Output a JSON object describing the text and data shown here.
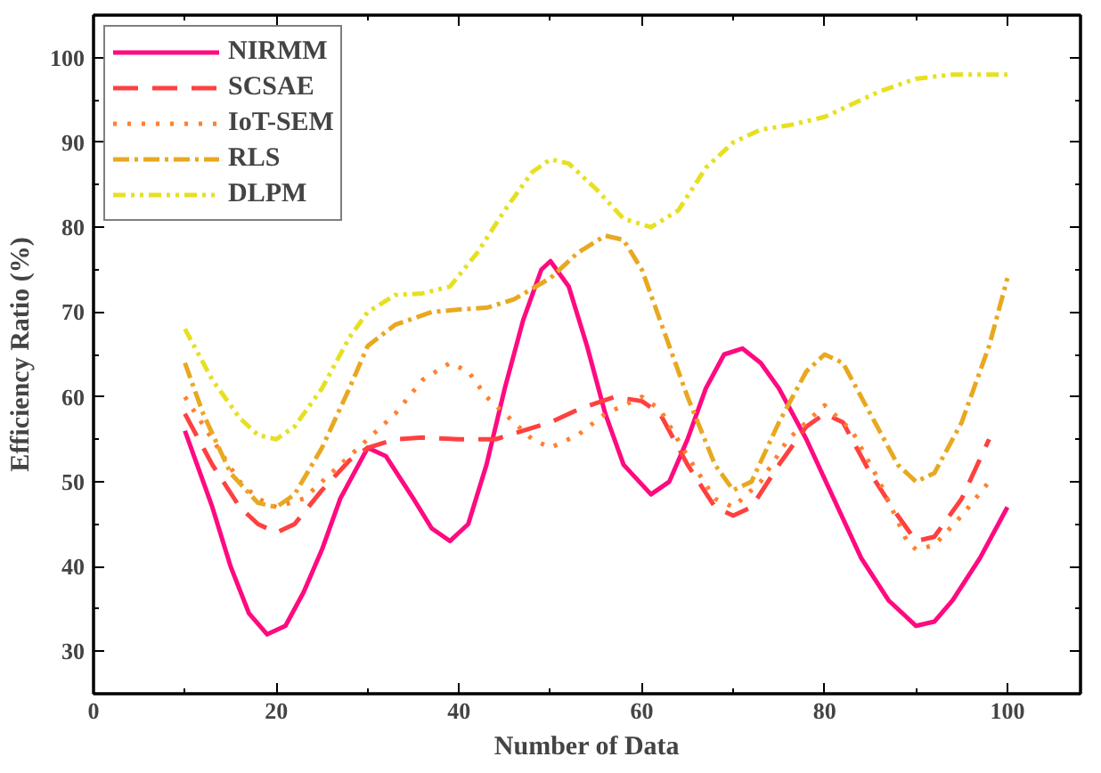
{
  "chart_data": {
    "type": "line",
    "xlabel": "Number of Data",
    "ylabel": "Efficiency Ratio (%)",
    "xlim": [
      0,
      108
    ],
    "ylim": [
      25,
      105
    ],
    "xticks": [
      0,
      20,
      40,
      60,
      80,
      100
    ],
    "yticks": [
      30,
      40,
      50,
      60,
      70,
      80,
      90,
      100
    ],
    "grid": false,
    "legend": "top left",
    "marker": "none",
    "series": [
      {
        "name": "NIRMM",
        "color": "#ff0a80",
        "line_style": "solid",
        "x": [
          10,
          13,
          15,
          17,
          19,
          21,
          23,
          25,
          27,
          30,
          32,
          35,
          37,
          39,
          41,
          43,
          45,
          47,
          49,
          50,
          52,
          54,
          56,
          58,
          61,
          63,
          65,
          67,
          69,
          71,
          73,
          75,
          78,
          81,
          84,
          87,
          90,
          92,
          94,
          97,
          100
        ],
        "values": [
          56,
          47,
          40,
          34.5,
          32,
          33,
          37,
          42,
          48,
          54,
          53,
          48,
          44.5,
          43,
          45,
          52,
          61,
          69,
          75,
          76,
          73,
          66,
          58,
          52,
          48.5,
          50,
          55,
          61,
          65,
          65.7,
          64,
          61,
          55,
          48,
          41,
          36,
          33,
          33.5,
          36,
          41,
          47
        ]
      },
      {
        "name": "SCSAE",
        "color": "#ff4040",
        "line_style": "dashed",
        "x": [
          10,
          13,
          16,
          18,
          20,
          22,
          25,
          28,
          30,
          33,
          36,
          40,
          44,
          47,
          50,
          53,
          57,
          60,
          62,
          65,
          68,
          70,
          72,
          75,
          78,
          80,
          82,
          85,
          88,
          90,
          92,
          95,
          98
        ],
        "values": [
          58,
          52,
          47,
          45,
          44,
          45,
          49,
          52.5,
          54,
          55,
          55.2,
          55,
          55,
          56,
          57,
          58.5,
          60,
          59.5,
          58,
          52,
          47,
          46,
          47,
          52,
          56.5,
          58,
          57,
          51,
          46,
          43,
          43.5,
          48,
          55
        ]
      },
      {
        "name": "IoT-SEM",
        "color": "#ff8030",
        "line_style": "dotted",
        "x": [
          10,
          13,
          16,
          18,
          20,
          23,
          26,
          30,
          33,
          36,
          39,
          41,
          43,
          45,
          48,
          50,
          53,
          56,
          60,
          62,
          65,
          68,
          70,
          73,
          76,
          80,
          83,
          86,
          89,
          90,
          92,
          95,
          98
        ],
        "values": [
          60,
          55,
          50,
          48,
          47,
          48,
          51,
          55,
          58,
          62,
          64,
          63,
          60,
          58,
          55,
          54,
          55.5,
          58,
          60,
          58.5,
          53,
          48,
          47,
          50,
          55,
          59,
          56,
          50,
          43,
          42,
          42.5,
          46,
          50
        ]
      },
      {
        "name": "RLS",
        "color": "#e8a820",
        "line_style": "dashdot",
        "x": [
          10,
          12,
          15,
          18,
          20,
          22,
          25,
          28,
          30,
          33,
          37,
          40,
          43,
          46,
          50,
          53,
          56,
          58,
          60,
          62,
          65,
          68,
          70,
          72,
          75,
          78,
          80,
          82,
          85,
          88,
          90,
          92,
          95,
          98,
          100
        ],
        "values": [
          64,
          58,
          51,
          47.5,
          47,
          48.5,
          54,
          61,
          66,
          68.5,
          70,
          70.3,
          70.5,
          71.5,
          74,
          77,
          79,
          78.5,
          75,
          69,
          60,
          52,
          49,
          50,
          57,
          63,
          65,
          64,
          58,
          52,
          50,
          51,
          57,
          66,
          74
        ]
      },
      {
        "name": "DLPM",
        "color": "#e6e020",
        "line_style": "dashdotdot",
        "x": [
          10,
          13,
          16,
          18,
          20,
          22,
          25,
          28,
          30,
          33,
          36,
          39,
          42,
          45,
          48,
          50,
          52,
          55,
          58,
          61,
          64,
          67,
          70,
          73,
          76,
          80,
          83,
          86,
          90,
          94,
          97,
          100
        ],
        "values": [
          68,
          62,
          57.5,
          55.5,
          55,
          56.5,
          61,
          67,
          70,
          72,
          72.2,
          73,
          77,
          82,
          86.5,
          88,
          87.5,
          84.5,
          81,
          80,
          82,
          87,
          90,
          91.5,
          92,
          93,
          94.5,
          96,
          97.5,
          98,
          98,
          98
        ]
      }
    ]
  }
}
